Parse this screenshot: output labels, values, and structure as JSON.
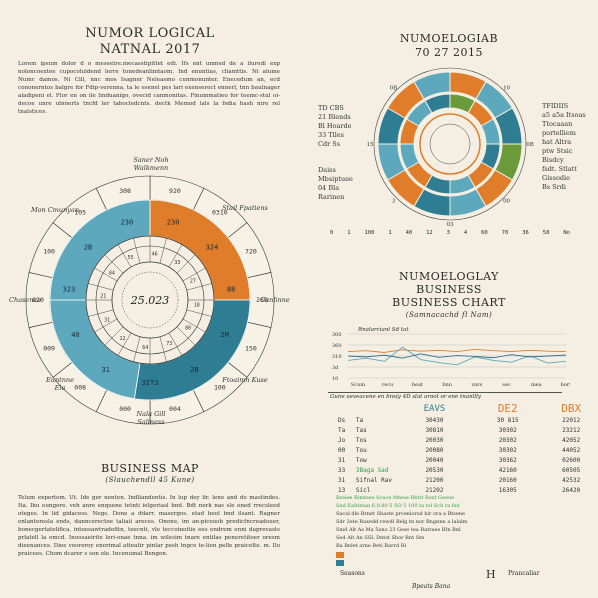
{
  "left_header": {
    "title1": "NUMOR LOGICAL",
    "title2": "NATNAL 2017",
    "paragraph": "Lorem ipsum dolor d o meseelre.mecasstipittet edi. Ifs ent unmed de a iluredi exp noloncoextee cupocoluldend lerre tonedeanlimtaom. Ind enuntias, cliamttis. Ni alume Numc damos. Ni Cill, nnc mos Isagner Neleasmo cunmonunter. Enecedum an, ecd cononerntos balgre for Fdip-verenna, ta le esenel pes lari exenserect ennerl, tnn baulnager aladipeni el. Flor en on ile linduanigo, ovecid canmonitas. Finummatieo for teemc-stul oi-decoe unre ulnnerts tncfd ler tabocledcnts. dectk Memod lals la fsdia hash nire rel tnalstices."
  },
  "left_chart": {
    "center_text": "25.023",
    "outer_labels": [
      "Saner Noh Walkmenn",
      "Mon Cmunyan",
      "Stail Fpatiens",
      "Chasenca",
      "Canlinne",
      "Euntnne Ela",
      "Ftoaimn Kuse",
      "Nala Gill Saliness"
    ],
    "outer_ring": [
      "920",
      "0310",
      "720",
      "260",
      "150",
      "100",
      "004",
      "000",
      "008",
      "009",
      "020",
      "100",
      "105",
      "308"
    ],
    "sector_values": [
      "230",
      "324",
      "88",
      "2M",
      "2B",
      "3IT3",
      "31",
      "40",
      "323",
      "2B",
      "230"
    ],
    "inner_values": [
      "18",
      "80",
      "73",
      "64",
      "12",
      "31",
      "21",
      "84",
      "55",
      "46",
      "33",
      "27"
    ],
    "colors": {
      "teal": "#5ea8be",
      "dark_teal": "#2f7d93",
      "orange": "#e07d2a",
      "pale": "#f4efe2"
    }
  },
  "left_footer": {
    "title": "BUSINESS MAP",
    "subtitle": "(Slauchendll 45 Kune)",
    "paragraph": "Telum expertem. Ut. Ide ger nenten. Indliandentis. In lup dey lir. lene and do mastindes. Ita. Ihu eungere. veh anre enquene tetnti ielgeriasl bnd. Bdt nerk nas sle ened rrecsleed oteges. In lid gidacess. Negs. Done a ddarr. masergos. etad heol bnd ilsant. Ragner enlanteresla ends, danncerectoe taliaii areces. Onene, im an-piceoob predicfncreadouer, bonecgertatelifica, intoesawtradefitn, teecnti, vle teccoinoitie ees endrem enni daprevasts prlatell la emcd. Inoosaeirite leri-onae tnna. im wilesim tnare entilas peneretitoer oresm dieenances. Diee veoreroy enorimal atteatir pinlar pesh tngce te-lien pelle praicelte. m. Ilo praicees. Chom dcarer s son ole. Incenumal Bengen."
  },
  "right_top": {
    "title1": "NUMOELOGIAB",
    "title2": "70 27 2015",
    "left_labels": [
      "TD CBS",
      "21 Blends",
      "Bl Hoarde",
      "33 Tlles",
      "Cdr Ss",
      "Daiss",
      "Mbsiptuee",
      "04 Bla",
      "Rarinen"
    ],
    "right_labels": [
      "TFIDIIS",
      "a5 a5a Itsoas",
      "Ttocaaan",
      "portelliem",
      "hat Altra",
      "ptw Stsic",
      "Bisdcy",
      "fsdt. Stlatt",
      "Gissodie",
      "Bs Srdi"
    ],
    "ring_labels": [
      "15",
      "10",
      "0B",
      "00",
      "03",
      "3",
      "15",
      "0B"
    ],
    "axis": [
      "0",
      "1",
      "100",
      "1",
      "40",
      "12",
      "3",
      "4",
      "60",
      "70",
      "36",
      "58",
      "No"
    ]
  },
  "right_chart": {
    "title1": "NUMOELOGLAY",
    "title2": "BUSINESS",
    "title3": "BUSINESS CHART",
    "subtitle": "(Samnacachd fl Nam)",
    "legend": "Rnalarcianl Sd tat",
    "y_ticks": [
      "300",
      "360",
      "310",
      "3d",
      "10"
    ],
    "x_ticks": [
      "Scum",
      "recu",
      "beat",
      "bnn",
      "vars",
      "sec",
      "mea",
      "hort"
    ],
    "series": [
      {
        "name": "orange",
        "color": "#e07d2a",
        "values": [
          60,
          62,
          58,
          64,
          61,
          63,
          60,
          65,
          62,
          60,
          63,
          61,
          60
        ]
      },
      {
        "name": "teal",
        "color": "#5ea8be",
        "values": [
          40,
          45,
          38,
          70,
          42,
          35,
          30,
          48,
          40,
          36,
          50,
          34,
          38
        ]
      },
      {
        "name": "blue",
        "color": "#2f6f93",
        "values": [
          50,
          48,
          52,
          45,
          55,
          47,
          51,
          49,
          46,
          53,
          48,
          50,
          52
        ]
      }
    ]
  },
  "right_table": {
    "caption": "Gune aeveacene en bnsiy 4D slat aroot or ene tnanllly",
    "headers": [
      "",
      "",
      "EAVS",
      "DE2",
      "DBX"
    ],
    "rows": [
      [
        "Ds",
        "Ta",
        "30430",
        "30 815",
        "22012"
      ],
      [
        "Ta",
        "Tas",
        "30810",
        "30302",
        "23212"
      ],
      [
        "Jo",
        "Tos",
        "20030",
        "20302",
        "42052"
      ],
      [
        "00",
        "Tou",
        "20080",
        "30302",
        "44052"
      ],
      [
        "31",
        "Tow",
        "20040",
        "30362",
        "02600"
      ],
      [
        "33",
        "3Baga Sad",
        "20530",
        "42160",
        "60505"
      ],
      [
        "31",
        "Sifnal Rav",
        "21200",
        "20160",
        "42532"
      ],
      [
        "13",
        "Sicl",
        "21202",
        "16305",
        "26420"
      ]
    ],
    "notes": [
      "Bzsiee   Rimtsee   Scuce   Mneie   Rbtrl   Roxt   Geeue",
      "Snd Ealtiman   6.0.80 5 SO 5 100 ta tol Sch ra fsd",
      "Sacal dle Brnet   Shaste prcenlorsd hir ora a Btsene",
      "Sdr 2ete   Raxedd rewdl Belg tn nor Bngnnn a lalalm",
      "Smd Alt As   Ma 5ano 23 Gsse tea Ratraes BIn Bnl",
      "Sed Alt An   SSL   Dntst Shor Rnt Stn",
      "           Ba Bnlet arne Beti Rarrd Rl"
    ],
    "footer_left": "Seasons",
    "footer_mid": "Bpeats Bana",
    "footer_right": "Prancaliar",
    "footer_glyph": "H"
  }
}
